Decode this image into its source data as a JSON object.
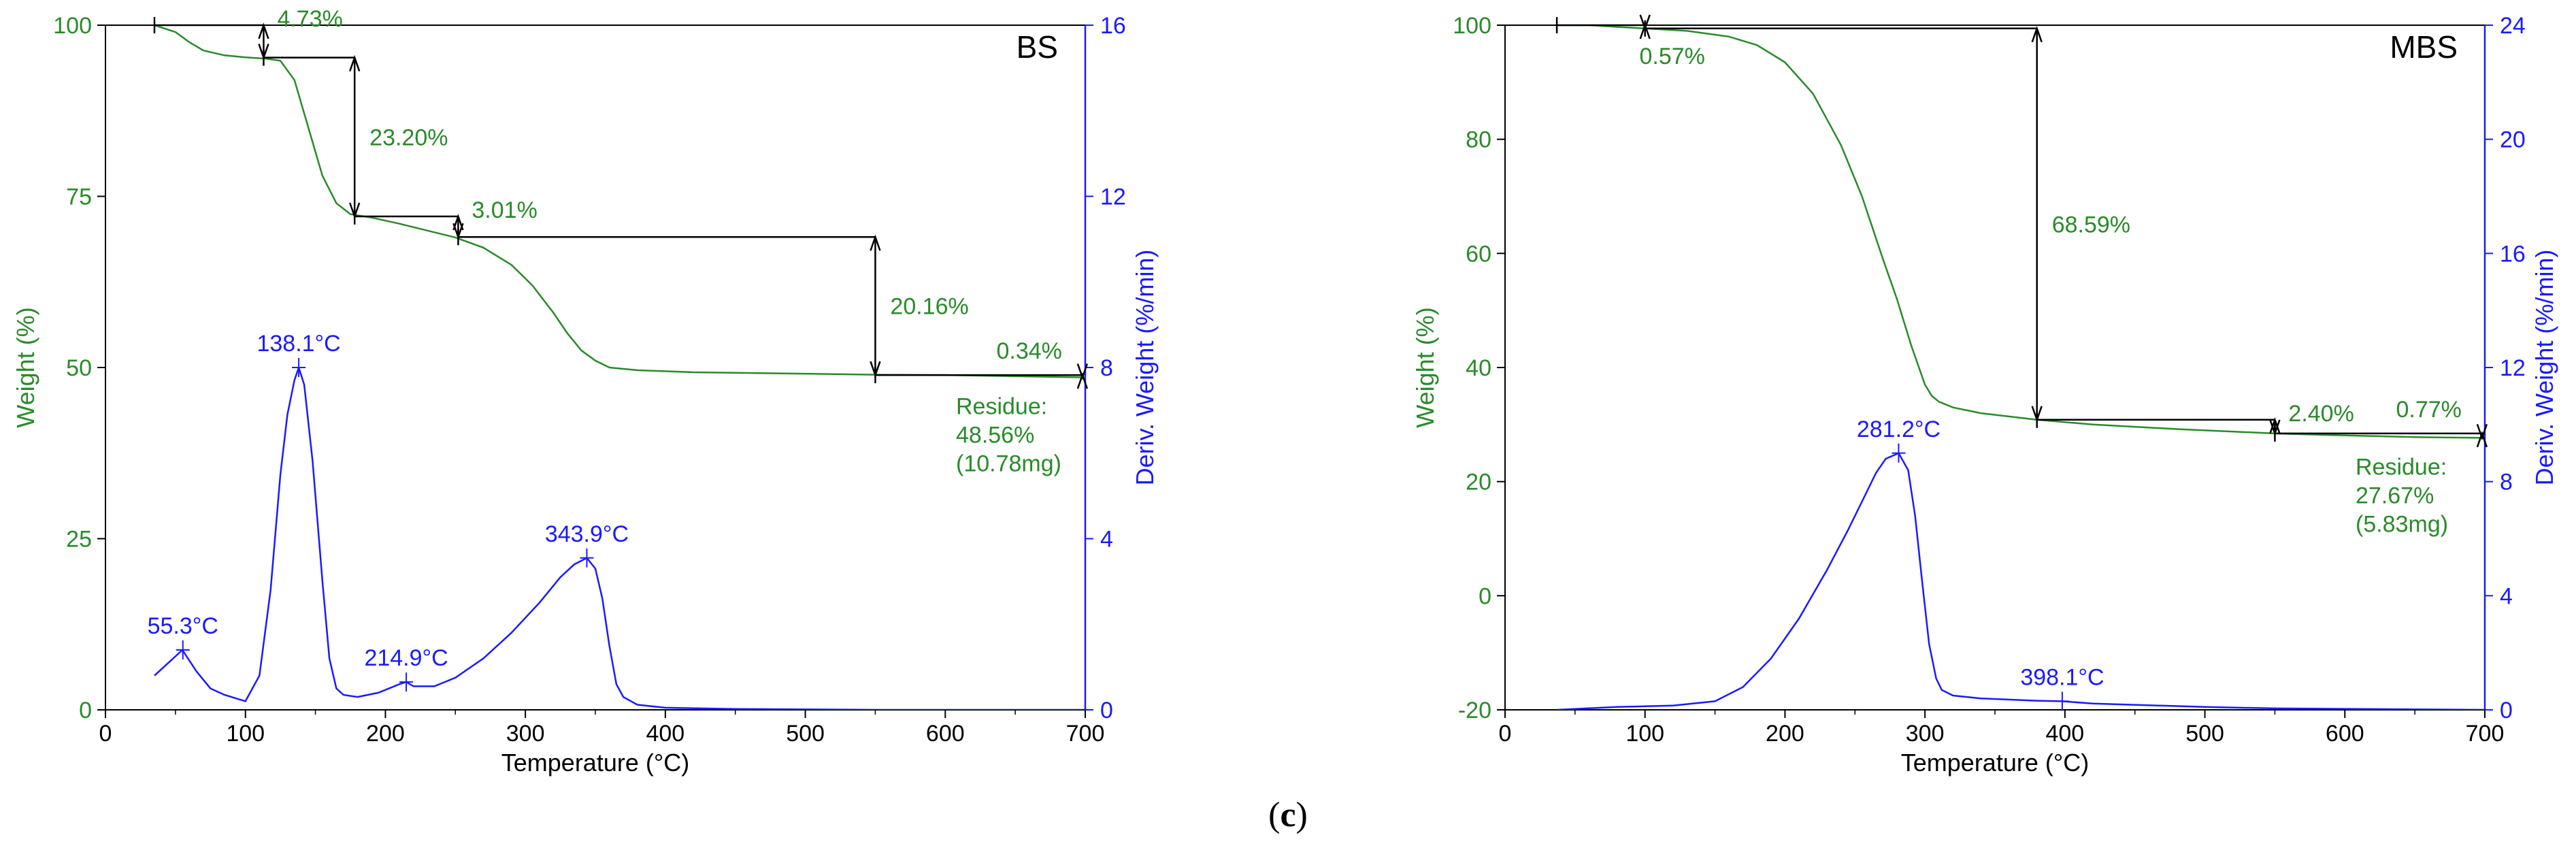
{
  "colors": {
    "weight": "#2a8a2a",
    "deriv": "#1a1aff",
    "axis": "#000000"
  },
  "caption": {
    "open": "(",
    "letter": "c",
    "close": ")"
  },
  "chart_data": [
    {
      "type": "line",
      "panel_label": "BS",
      "xlabel": "Temperature (°C)",
      "ylabel": "Weight (%)",
      "y2label": "Deriv. Weight (%/min)",
      "xlim": [
        0,
        700
      ],
      "ylim": [
        0,
        100
      ],
      "y2lim": [
        0,
        16
      ],
      "xticks": [
        0,
        100,
        200,
        300,
        400,
        500,
        600,
        700
      ],
      "yticks": [
        0,
        25,
        50,
        75,
        100
      ],
      "y2ticks": [
        0,
        4,
        8,
        12,
        16
      ],
      "series": [
        {
          "name": "Weight",
          "axis": "left",
          "x": [
            35,
            50,
            60,
            70,
            85,
            100,
            115,
            125,
            135,
            145,
            155,
            165,
            175,
            190,
            210,
            230,
            250,
            270,
            290,
            305,
            320,
            330,
            340,
            350,
            360,
            380,
            420,
            500,
            550,
            600,
            700
          ],
          "y": [
            100,
            99,
            97.5,
            96.3,
            95.6,
            95.3,
            95.1,
            94.8,
            92,
            85,
            78,
            74,
            72.4,
            71.9,
            71,
            70,
            69,
            67.5,
            65,
            62,
            58,
            55,
            52.5,
            51,
            50,
            49.6,
            49.3,
            49.1,
            48.95,
            48.9,
            48.56
          ]
        },
        {
          "name": "Deriv. Weight",
          "axis": "right",
          "x": [
            35,
            45,
            55,
            65,
            75,
            85,
            100,
            110,
            118,
            125,
            130,
            135,
            138.1,
            142,
            148,
            155,
            160,
            165,
            170,
            180,
            195,
            210,
            214.9,
            220,
            235,
            250,
            270,
            290,
            310,
            325,
            335,
            343.9,
            350,
            355,
            360,
            365,
            370,
            380,
            400,
            450,
            500,
            550,
            700
          ],
          "y": [
            0.8,
            1.1,
            1.4,
            0.9,
            0.5,
            0.35,
            0.2,
            0.8,
            2.8,
            5.5,
            6.9,
            7.7,
            8,
            7.6,
            5.8,
            3,
            1.2,
            0.5,
            0.35,
            0.3,
            0.4,
            0.6,
            0.65,
            0.55,
            0.55,
            0.75,
            1.2,
            1.8,
            2.5,
            3.1,
            3.4,
            3.55,
            3.3,
            2.6,
            1.5,
            0.6,
            0.3,
            0.12,
            0.05,
            0.02,
            0.01,
            0,
            0
          ]
        }
      ],
      "steps": [
        {
          "label": "4.73%",
          "from": 100,
          "to": 95.27,
          "x0": 35,
          "x1": 113
        },
        {
          "label": "23.20%",
          "from": 95.27,
          "to": 72.07,
          "x0": 113,
          "x1": 178
        },
        {
          "label": "3.01%",
          "from": 72.07,
          "to": 69.06,
          "x0": 178,
          "x1": 252
        },
        {
          "label": "20.16%",
          "from": 69.06,
          "to": 48.9,
          "x0": 252,
          "x1": 550
        },
        {
          "label": "0.34%",
          "from": 48.9,
          "to": 48.56,
          "x0": 550,
          "x1": 698
        }
      ],
      "peaks": [
        {
          "label": "55.3°C",
          "x": 55.3,
          "d": 1.4
        },
        {
          "label": "138.1°C",
          "x": 138.1,
          "d": 8
        },
        {
          "label": "214.9°C",
          "x": 214.9,
          "d": 0.65
        },
        {
          "label": "343.9°C",
          "x": 343.9,
          "d": 3.55
        }
      ],
      "residue": {
        "title": "Residue:",
        "percent": "48.56%",
        "mass": "(10.78mg)"
      }
    },
    {
      "type": "line",
      "panel_label": "MBS",
      "xlabel": "Temperature (°C)",
      "ylabel": "Weight (%)",
      "y2label": "Deriv. Weight (%/min)",
      "xlim": [
        0,
        700
      ],
      "ylim": [
        -20,
        100
      ],
      "y2lim": [
        0,
        24
      ],
      "xticks": [
        0,
        100,
        200,
        300,
        400,
        500,
        600,
        700
      ],
      "yticks": [
        -20,
        0,
        20,
        40,
        60,
        80,
        100
      ],
      "y2ticks": [
        0,
        4,
        8,
        12,
        16,
        20,
        24
      ],
      "series": [
        {
          "name": "Weight",
          "axis": "left",
          "x": [
            37,
            60,
            80,
            100,
            130,
            160,
            180,
            200,
            220,
            240,
            255,
            270,
            280,
            290,
            300,
            305,
            310,
            320,
            340,
            380,
            420,
            480,
            550,
            600,
            650,
            700
          ],
          "y": [
            100,
            100,
            99.7,
            99.43,
            99,
            98,
            96.5,
            93.5,
            88,
            79,
            70,
            59,
            52,
            44,
            37,
            35,
            34,
            33,
            32,
            30.84,
            30,
            29.2,
            28.44,
            28.1,
            27.8,
            27.67
          ]
        },
        {
          "name": "Deriv. Weight",
          "axis": "right",
          "x": [
            37,
            80,
            120,
            150,
            170,
            190,
            210,
            230,
            245,
            255,
            265,
            272,
            281.2,
            288,
            293,
            298,
            303,
            308,
            312,
            320,
            340,
            380,
            398.1,
            420,
            500,
            550,
            700
          ],
          "y": [
            0,
            0.1,
            0.15,
            0.3,
            0.8,
            1.8,
            3.2,
            4.9,
            6.3,
            7.3,
            8.3,
            8.8,
            9,
            8.4,
            6.8,
            4.5,
            2.3,
            1.1,
            0.7,
            0.5,
            0.4,
            0.32,
            0.3,
            0.22,
            0.1,
            0.05,
            0
          ]
        }
      ],
      "steps": [
        {
          "label": "0.57%",
          "from": 100,
          "to": 99.43,
          "x0": 37,
          "x1": 100
        },
        {
          "label": "68.59%",
          "from": 99.43,
          "to": 30.84,
          "x0": 100,
          "x1": 380
        },
        {
          "label": "2.40%",
          "from": 30.84,
          "to": 28.44,
          "x0": 380,
          "x1": 550
        },
        {
          "label": "0.77%",
          "from": 28.44,
          "to": 27.67,
          "x0": 550,
          "x1": 698
        }
      ],
      "peaks": [
        {
          "label": "281.2°C",
          "x": 281.2,
          "d": 9
        },
        {
          "label": "398.1°C",
          "x": 398.1,
          "d": 0.3
        }
      ],
      "residue": {
        "title": "Residue:",
        "percent": "27.67%",
        "mass": "(5.83mg)"
      }
    }
  ]
}
